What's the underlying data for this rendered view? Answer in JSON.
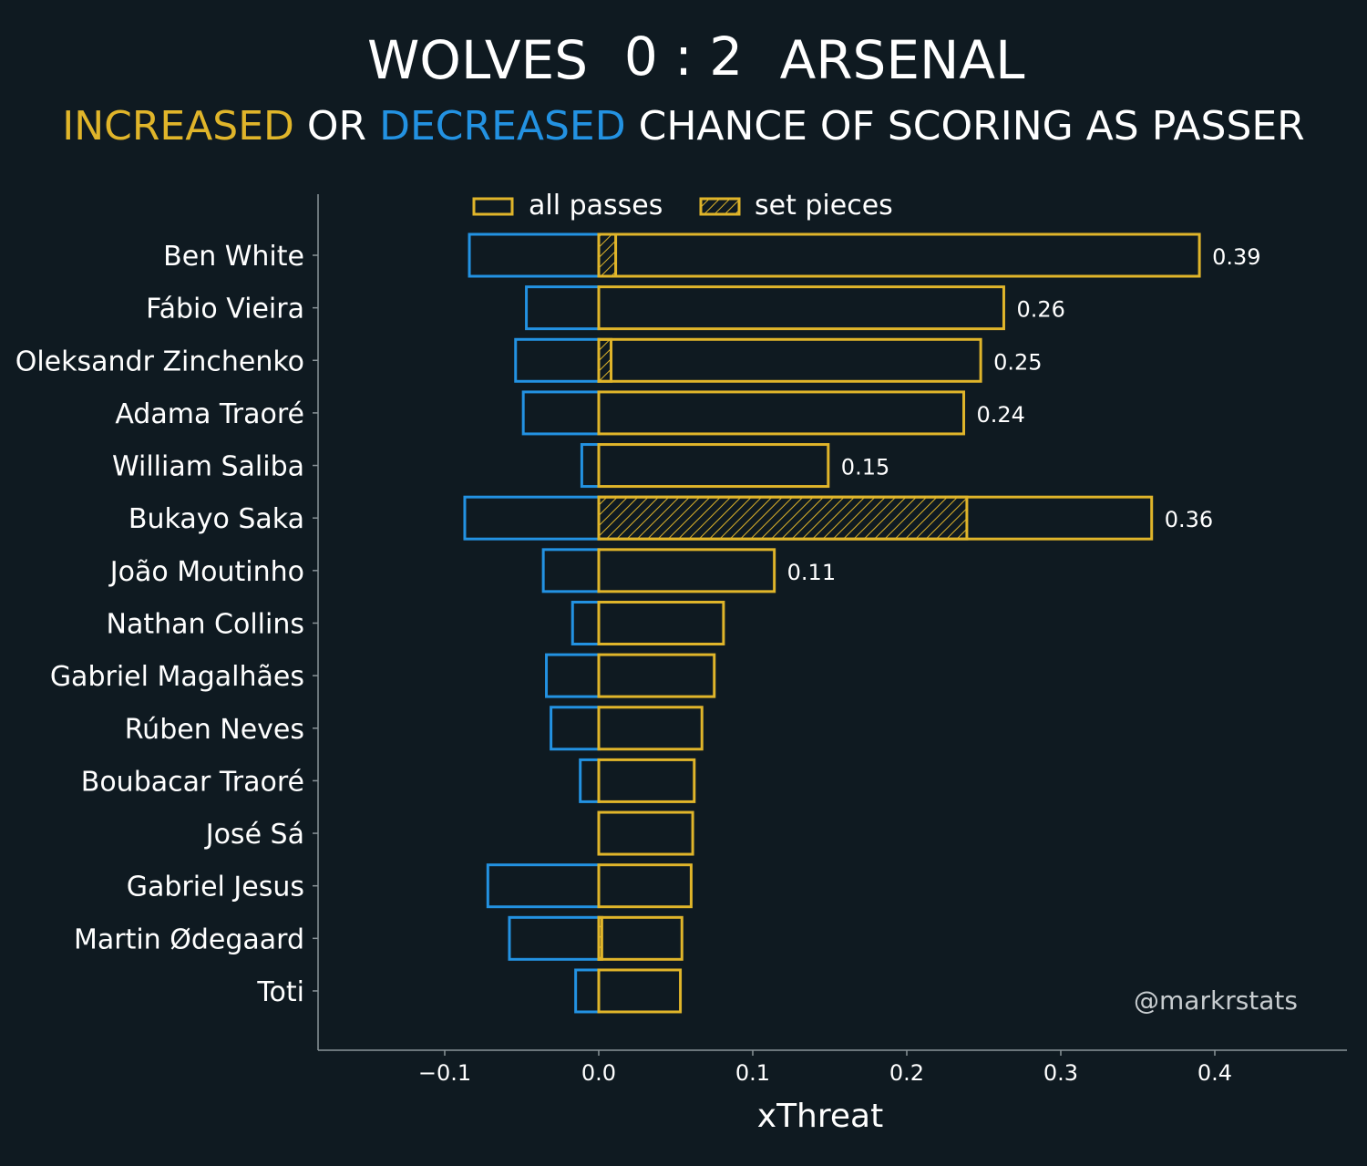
{
  "chart_data": {
    "type": "bar",
    "orientation": "horizontal",
    "title": {
      "home": "WOLVES",
      "score": "0 : 2",
      "away": "ARSENAL"
    },
    "subtitle": {
      "part1": "INCREASED",
      "part2": " OR ",
      "part3": "DECREASED",
      "part4": " CHANCE OF SCORING AS PASSER"
    },
    "xlabel": "xThreat",
    "xlim": [
      -0.182,
      0.486
    ],
    "xticks": [
      -0.1,
      0.0,
      0.1,
      0.2,
      0.3,
      0.4
    ],
    "xtick_labels": [
      "−0.1",
      "0.0",
      "0.1",
      "0.2",
      "0.3",
      "0.4"
    ],
    "legend": {
      "placement": "top-center",
      "all_passes": "all passes",
      "set_pieces": "set pieces"
    },
    "watermark": "@markrstats",
    "colors": {
      "background": "#0f1a21",
      "increased": "#e0b52a",
      "decreased": "#2392e2",
      "text": "#ffffff",
      "axis": "#8a9499"
    },
    "categories": [
      "Ben White",
      "Fábio Vieira",
      "Oleksandr Zinchenko",
      "Adama Traoré",
      "William Saliba",
      "Bukayo Saka",
      "João Moutinho",
      "Nathan Collins",
      "Gabriel Magalhães",
      "Rúben Neves",
      "Boubacar Traoré",
      "José Sá",
      "Gabriel Jesus",
      "Martin Ødegaard",
      "Toti"
    ],
    "series": [
      {
        "name": "increased (all passes)",
        "values": [
          0.39,
          0.263,
          0.248,
          0.237,
          0.149,
          0.359,
          0.114,
          0.081,
          0.075,
          0.067,
          0.062,
          0.061,
          0.06,
          0.054,
          0.053
        ]
      },
      {
        "name": "increased (set pieces)",
        "values": [
          0.011,
          0,
          0.008,
          0,
          0,
          0.239,
          0,
          0,
          0,
          0,
          0,
          0,
          0,
          0.002,
          0
        ]
      },
      {
        "name": "decreased",
        "values": [
          -0.084,
          -0.047,
          -0.054,
          -0.049,
          -0.011,
          -0.087,
          -0.036,
          -0.017,
          -0.034,
          -0.031,
          -0.012,
          0,
          -0.072,
          -0.058,
          -0.015
        ]
      }
    ],
    "data_labels": [
      "0.39",
      "0.26",
      "0.25",
      "0.24",
      "0.15",
      "0.36",
      "0.11",
      "",
      "",
      "",
      "",
      "",
      "",
      "",
      ""
    ]
  }
}
